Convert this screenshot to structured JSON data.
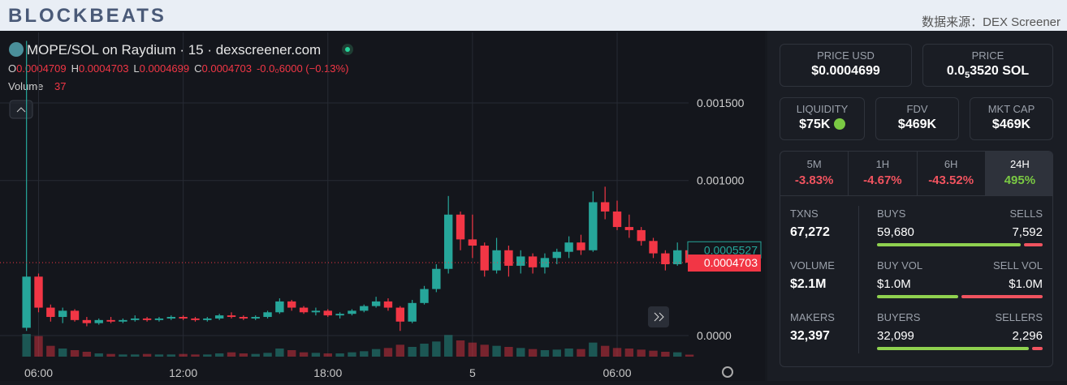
{
  "header": {
    "logo": "BLOCKBEATS",
    "source": "数据来源：DEX Screener"
  },
  "chart": {
    "type": "candlestick",
    "title": "MOPE/SOL on Raydium · 15 · dexscreener.com",
    "ohlc": [
      {
        "key": "O",
        "value": 0.0004709
      },
      {
        "key": "H",
        "value": 0.0004703
      },
      {
        "key": "L",
        "value": 0.0004699
      },
      {
        "key": "C",
        "value": 0.0004703
      }
    ],
    "change": "-0.0₀6000 (−0.13%)",
    "volume_label": "Volume",
    "x": [
      5.5,
      6,
      6.5,
      7,
      7.5,
      8,
      8.5,
      9,
      9.5,
      10,
      10.5,
      11,
      11.5,
      12,
      12.5,
      13,
      13.5,
      14,
      14.5,
      15,
      15.5,
      16,
      16.5,
      17,
      17.5,
      18,
      18.5,
      19,
      19.5,
      20,
      20.5,
      21,
      21.5,
      22,
      22.5,
      23,
      23.5,
      24,
      24.5,
      25,
      25.5,
      26,
      26.5,
      27,
      27.5,
      28,
      28.5,
      29,
      29.5,
      30,
      30.5,
      31,
      31.5,
      32,
      32.5,
      33
    ],
    "open": [
      5e-05,
      0.00038,
      0.00018,
      0.00012,
      0.00016,
      0.0001,
      8e-05,
      0.0001,
      9e-05,
      0.0001,
      0.00011,
      0.0001,
      0.00011,
      0.00012,
      0.00011,
      0.0001,
      0.00011,
      0.00013,
      0.00012,
      0.00011,
      0.00012,
      0.00015,
      0.00022,
      0.00018,
      0.00015,
      0.00016,
      0.00013,
      0.00014,
      0.00016,
      0.00019,
      0.00022,
      0.00018,
      9e-05,
      0.00021,
      0.0003,
      0.00043,
      0.00078,
      0.00062,
      0.00058,
      0.00042,
      0.00055,
      0.00045,
      0.00051,
      0.00044,
      0.0005,
      0.00054,
      0.0006,
      0.00055,
      0.00086,
      0.0008,
      0.0007,
      0.00068,
      0.00061,
      0.00053,
      0.00046,
      0.00055
    ],
    "high": [
      0.0019,
      0.0004,
      0.0002,
      0.00018,
      0.00017,
      0.00012,
      0.00011,
      0.00012,
      0.00011,
      0.00013,
      0.00012,
      0.00012,
      0.00013,
      0.00013,
      0.00012,
      0.00012,
      0.00014,
      0.00015,
      0.00013,
      0.00013,
      0.00016,
      0.00024,
      0.00023,
      0.00019,
      0.00018,
      0.00017,
      0.00015,
      0.00017,
      0.0002,
      0.00025,
      0.00024,
      0.00019,
      0.00023,
      0.00032,
      0.00046,
      0.0009,
      0.0008,
      0.00078,
      0.0006,
      0.00063,
      0.00058,
      0.00055,
      0.00053,
      0.00053,
      0.00056,
      0.00064,
      0.00065,
      0.00093,
      0.00096,
      0.00087,
      0.00078,
      0.0007,
      0.00063,
      0.00055,
      0.0006,
      0.00057
    ],
    "low": [
      3e-05,
      0.00015,
      9e-05,
      8e-05,
      9e-05,
      6e-05,
      7e-05,
      8e-05,
      8e-05,
      9e-05,
      9e-05,
      9e-05,
      0.0001,
      0.0001,
      9e-05,
      9e-05,
      0.0001,
      0.00011,
      0.0001,
      0.0001,
      0.00011,
      0.00014,
      0.00016,
      0.00014,
      0.00013,
      0.00012,
      0.00011,
      0.00013,
      0.00015,
      0.00018,
      0.00016,
      3e-05,
      8e-05,
      0.0002,
      0.00028,
      0.0004,
      0.00055,
      0.0005,
      0.00038,
      0.0004,
      0.00038,
      0.0004,
      0.0004,
      0.0004,
      0.00046,
      0.0005,
      0.00052,
      0.00054,
      0.00075,
      0.00068,
      0.00063,
      0.00058,
      0.0005,
      0.00042,
      0.00045,
      0.00046
    ],
    "close": [
      0.00038,
      0.00018,
      0.00012,
      0.00016,
      0.0001,
      8e-05,
      0.0001,
      9e-05,
      0.0001,
      0.00011,
      0.0001,
      0.00011,
      0.00012,
      0.00011,
      0.0001,
      0.00011,
      0.00013,
      0.00012,
      0.00011,
      0.00012,
      0.00015,
      0.00022,
      0.00018,
      0.00015,
      0.00016,
      0.00013,
      0.00014,
      0.00016,
      0.00019,
      0.00022,
      0.00018,
      9e-05,
      0.00021,
      0.0003,
      0.00043,
      0.00078,
      0.00062,
      0.00058,
      0.00042,
      0.00055,
      0.00045,
      0.00051,
      0.00044,
      0.0005,
      0.00054,
      0.0006,
      0.00055,
      0.00086,
      0.0008,
      0.0007,
      0.00068,
      0.00061,
      0.00053,
      0.00046,
      0.00055,
      0.00047
    ],
    "volume": [
      420,
      380,
      200,
      150,
      120,
      90,
      60,
      50,
      40,
      40,
      50,
      40,
      40,
      50,
      40,
      40,
      60,
      80,
      60,
      50,
      70,
      150,
      120,
      80,
      70,
      60,
      60,
      80,
      100,
      140,
      160,
      220,
      180,
      240,
      280,
      400,
      300,
      260,
      220,
      200,
      180,
      160,
      140,
      120,
      130,
      150,
      140,
      260,
      200,
      160,
      150,
      130,
      110,
      90,
      80,
      37
    ],
    "xlim": [
      4.4,
      33.2
    ],
    "xticks": [
      {
        "value": 6,
        "label": "06:00"
      },
      {
        "value": 12,
        "label": "12:00"
      },
      {
        "value": 18,
        "label": "18:00"
      },
      {
        "value": 24,
        "label": "5"
      },
      {
        "value": 30,
        "label": "06:00"
      }
    ],
    "ylim": [
      -0.000136,
      0.001955
    ],
    "yticks": [
      {
        "value": 0,
        "label": "0.0000"
      },
      {
        "value": 0.001,
        "label": "0.001000"
      },
      {
        "value": 0.0015,
        "label": "0.001500"
      }
    ],
    "up_color": "#26a69a",
    "down_color": "#f23645",
    "tag_price": 0.0005527,
    "last_price": 0.0004703
  },
  "panel": {
    "price_usd": {
      "label": "PRICE USD",
      "value": "$0.0004699"
    },
    "price": {
      "label": "PRICE",
      "prefix": "0.0",
      "sub": "5",
      "rest": "3520 SOL"
    },
    "cards": [
      {
        "label": "LIQUIDITY",
        "value": "$75K"
      },
      {
        "label": "FDV",
        "value": "$469K"
      },
      {
        "label": "MKT CAP",
        "value": "$469K"
      }
    ],
    "timeframes": [
      {
        "label": "5M",
        "change": "-3.83%"
      },
      {
        "label": "1H",
        "change": "-4.67%"
      },
      {
        "label": "6H",
        "change": "-43.52%"
      },
      {
        "label": "24H",
        "change": "495%"
      }
    ],
    "stats": [
      {
        "label": "TXNS",
        "value": "67,272",
        "left": {
          "label": "BUYS",
          "value": "59,680"
        },
        "right": {
          "label": "SELLS",
          "value": "7,592"
        }
      },
      {
        "label": "VOLUME",
        "value": "$2.1M",
        "left": {
          "label": "BUY VOL",
          "value": "$1.0M"
        },
        "right": {
          "label": "SELL VOL",
          "value": "$1.0M"
        }
      },
      {
        "label": "MAKERS",
        "value": "32,397",
        "left": {
          "label": "BUYERS",
          "value": "32,099"
        },
        "right": {
          "label": "SELLERS",
          "value": "2,296"
        }
      }
    ]
  }
}
